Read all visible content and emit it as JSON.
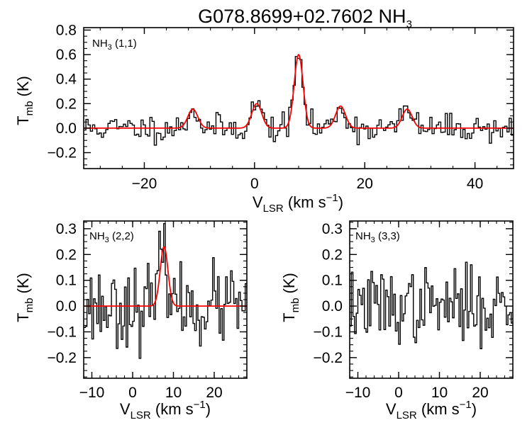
{
  "title": {
    "prefix": "G078.8699+02.7602 NH",
    "sub": "3"
  },
  "chart_data": [
    {
      "type": "line",
      "panel_label": {
        "pre": "NH",
        "sub": "3",
        "post": " (1,1)"
      },
      "xlabel": {
        "main": "V",
        "sub": "LSR",
        "unit": " (km s",
        "sup": "−1",
        "close": ")"
      },
      "ylabel": {
        "main": "T",
        "sub": "mb",
        "unit": " (K)"
      },
      "xlim": [
        -31,
        47
      ],
      "ylim": [
        -0.33,
        0.82
      ],
      "xticks": [
        -20,
        0,
        20,
        40
      ],
      "xtick_labels": [
        "−20",
        "0",
        "20",
        "40"
      ],
      "yticks": [
        -0.2,
        0.0,
        0.2,
        0.4,
        0.6,
        0.8
      ],
      "ytick_labels": [
        "−0.2",
        "0.0",
        "0.2",
        "0.4",
        "0.6",
        "0.8"
      ],
      "fit": {
        "color": "#ff0000",
        "components": [
          {
            "center": -11.2,
            "amplitude": 0.155,
            "sigma": 0.9
          },
          {
            "center": 0.4,
            "amplitude": 0.2,
            "sigma": 0.9
          },
          {
            "center": 8.0,
            "amplitude": 0.6,
            "sigma": 0.8
          },
          {
            "center": 15.6,
            "amplitude": 0.18,
            "sigma": 0.9
          },
          {
            "center": 27.7,
            "amplitude": 0.155,
            "sigma": 0.9
          }
        ]
      },
      "spectrum_channel_width": 0.4,
      "spectrum_noise": 0.055,
      "spectrum_seed": 11
    },
    {
      "type": "line",
      "panel_label": {
        "pre": "NH",
        "sub": "3",
        "post": " (2,2)"
      },
      "xlabel": {
        "main": "V",
        "sub": "LSR",
        "unit": " (km s",
        "sup": "−1",
        "close": ")"
      },
      "ylabel": {
        "main": "T",
        "sub": "mb",
        "unit": " (K)"
      },
      "xlim": [
        -12,
        28
      ],
      "ylim": [
        -0.28,
        0.33
      ],
      "xticks": [
        -10,
        0,
        10,
        20
      ],
      "xtick_labels": [
        "−10",
        "0",
        "10",
        "20"
      ],
      "yticks": [
        -0.2,
        -0.1,
        0.0,
        0.1,
        0.2,
        0.3
      ],
      "ytick_labels": [
        "−0.2",
        "−0.1",
        "0.0",
        "0.1",
        "0.2",
        "0.3"
      ],
      "fit": {
        "color": "#ff0000",
        "components": [
          {
            "center": 7.7,
            "amplitude": 0.23,
            "sigma": 0.95
          }
        ]
      },
      "spectrum_channel_width": 0.4,
      "spectrum_noise": 0.075,
      "spectrum_seed": 23
    },
    {
      "type": "line",
      "panel_label": {
        "pre": "NH",
        "sub": "3",
        "post": " (3,3)"
      },
      "xlabel": {
        "main": "V",
        "sub": "LSR",
        "unit": " (km s",
        "sup": "−1",
        "close": ")"
      },
      "ylabel": {
        "main": "T",
        "sub": "mb",
        "unit": " (K)"
      },
      "xlim": [
        -12,
        28
      ],
      "ylim": [
        -0.28,
        0.33
      ],
      "xticks": [
        -10,
        0,
        10,
        20
      ],
      "xtick_labels": [
        "−10",
        "0",
        "10",
        "20"
      ],
      "yticks": [
        -0.2,
        -0.1,
        0.0,
        0.1,
        0.2,
        0.3
      ],
      "ytick_labels": [
        "−0.2",
        "−0.1",
        "0.0",
        "0.1",
        "0.2",
        "0.3"
      ],
      "fit": null,
      "spectrum_channel_width": 0.4,
      "spectrum_noise": 0.07,
      "spectrum_seed": 37
    }
  ]
}
